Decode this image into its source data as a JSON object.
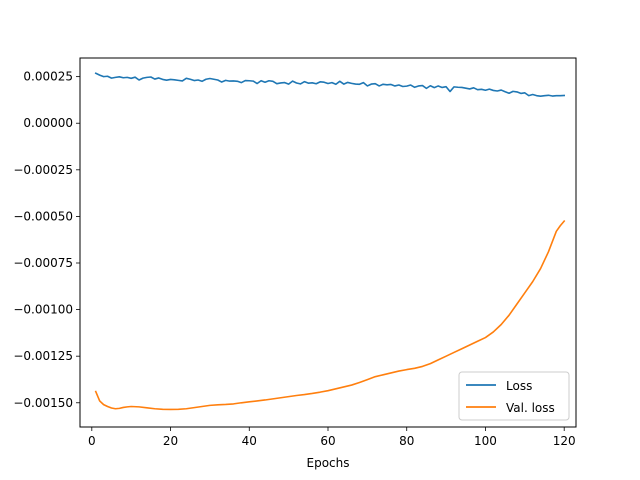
{
  "chart_data": {
    "type": "line",
    "title": "",
    "xlabel": "Epochs",
    "ylabel": "",
    "xlim": [
      -3,
      123
    ],
    "ylim": [
      -0.00163,
      0.00035
    ],
    "xticks": [
      0,
      20,
      40,
      60,
      80,
      100,
      120
    ],
    "xtick_labels": [
      "0",
      "20",
      "40",
      "60",
      "80",
      "100",
      "120"
    ],
    "yticks": [
      0.00025,
      0.0,
      -0.00025,
      -0.0005,
      -0.00075,
      -0.001,
      -0.00125,
      -0.0015
    ],
    "ytick_labels": [
      "0.00025",
      "0.00000",
      "−0.00025",
      "−0.00050",
      "−0.00075",
      "−0.00100",
      "−0.00125",
      "−0.00150"
    ],
    "grid": false,
    "legend_position": "bottom-right",
    "series": [
      {
        "name": "Loss",
        "color": "#1f77b4",
        "x": [
          1,
          2,
          3,
          4,
          5,
          6,
          7,
          8,
          9,
          10,
          11,
          12,
          13,
          14,
          15,
          16,
          17,
          18,
          19,
          20,
          21,
          22,
          23,
          24,
          25,
          26,
          27,
          28,
          29,
          30,
          31,
          32,
          33,
          34,
          35,
          36,
          37,
          38,
          39,
          40,
          41,
          42,
          43,
          44,
          45,
          46,
          47,
          48,
          49,
          50,
          51,
          52,
          53,
          54,
          55,
          56,
          57,
          58,
          59,
          60,
          61,
          62,
          63,
          64,
          65,
          66,
          67,
          68,
          69,
          70,
          71,
          72,
          73,
          74,
          75,
          76,
          77,
          78,
          79,
          80,
          81,
          82,
          83,
          84,
          85,
          86,
          87,
          88,
          89,
          90,
          91,
          92,
          93,
          94,
          95,
          96,
          97,
          98,
          99,
          100,
          101,
          102,
          103,
          104,
          105,
          106,
          107,
          108,
          109,
          110,
          111,
          112,
          113,
          114,
          115,
          116,
          117,
          118,
          119,
          120
        ],
        "y": [
          0.000268,
          0.000258,
          0.00025,
          0.000252,
          0.000242,
          0.000246,
          0.000249,
          0.000244,
          0.000246,
          0.000241,
          0.000247,
          0.000232,
          0.000242,
          0.000246,
          0.000248,
          0.000237,
          0.000243,
          0.000235,
          0.000231,
          0.000235,
          0.000233,
          0.00023,
          0.000227,
          0.000241,
          0.000236,
          0.000229,
          0.000232,
          0.000225,
          0.000236,
          0.00024,
          0.000236,
          0.000232,
          0.000221,
          0.00023,
          0.000226,
          0.000227,
          0.000225,
          0.000218,
          0.000229,
          0.000228,
          0.000226,
          0.000213,
          0.000228,
          0.00022,
          0.000228,
          0.000225,
          0.000212,
          0.000216,
          0.000218,
          0.00021,
          0.000226,
          0.000216,
          0.000211,
          0.000223,
          0.000215,
          0.000217,
          0.000212,
          0.000222,
          0.00022,
          0.000213,
          0.000218,
          0.000209,
          0.000225,
          0.00021,
          0.000219,
          0.000214,
          0.00021,
          0.000209,
          0.000218,
          0.0002,
          0.00021,
          0.000212,
          0.0002,
          0.000209,
          0.000206,
          0.000208,
          0.0002,
          0.000205,
          0.000197,
          0.000199,
          0.000205,
          0.000193,
          0.0002,
          0.000202,
          0.000187,
          0.000201,
          0.000191,
          0.0002,
          0.000192,
          0.000196,
          0.00017,
          0.000195,
          0.000193,
          0.000192,
          0.000188,
          0.000184,
          0.00019,
          0.00018,
          0.000182,
          0.000177,
          0.000183,
          0.000176,
          0.000173,
          0.000178,
          0.000169,
          0.000161,
          0.000171,
          0.000168,
          0.00016,
          0.000163,
          0.000148,
          0.000154,
          0.000148,
          0.000145,
          0.000148,
          0.00015,
          0.000146,
          0.000148,
          0.000148,
          0.000149
        ]
      },
      {
        "name": "Val. loss",
        "color": "#ff7f0e",
        "x": [
          1,
          2,
          3,
          4,
          5,
          6,
          7,
          8,
          9,
          10,
          12,
          14,
          16,
          18,
          20,
          22,
          24,
          26,
          28,
          30,
          32,
          34,
          36,
          38,
          40,
          42,
          44,
          46,
          48,
          50,
          52,
          54,
          56,
          58,
          60,
          62,
          64,
          66,
          68,
          70,
          72,
          74,
          76,
          78,
          80,
          82,
          84,
          86,
          88,
          90,
          92,
          94,
          96,
          98,
          100,
          102,
          104,
          106,
          108,
          110,
          112,
          114,
          116,
          118,
          119,
          120
        ],
        "y": [
          -0.00144,
          -0.00149,
          -0.00151,
          -0.00152,
          -0.001528,
          -0.001532,
          -0.00153,
          -0.001525,
          -0.001522,
          -0.00152,
          -0.001522,
          -0.001527,
          -0.001532,
          -0.001535,
          -0.001536,
          -0.001535,
          -0.001532,
          -0.001526,
          -0.00152,
          -0.001514,
          -0.001511,
          -0.001509,
          -0.001506,
          -0.0015,
          -0.001495,
          -0.00149,
          -0.001485,
          -0.001479,
          -0.001473,
          -0.001467,
          -0.001461,
          -0.001456,
          -0.00145,
          -0.001443,
          -0.001435,
          -0.001425,
          -0.001415,
          -0.001405,
          -0.001391,
          -0.001376,
          -0.00136,
          -0.00135,
          -0.00134,
          -0.00133,
          -0.001322,
          -0.001315,
          -0.001305,
          -0.00129,
          -0.00127,
          -0.00125,
          -0.00123,
          -0.00121,
          -0.00119,
          -0.00117,
          -0.00115,
          -0.00112,
          -0.00108,
          -0.00103,
          -0.00097,
          -0.00091,
          -0.00085,
          -0.00078,
          -0.00069,
          -0.00058,
          -0.00055,
          -0.000525
        ]
      }
    ]
  }
}
